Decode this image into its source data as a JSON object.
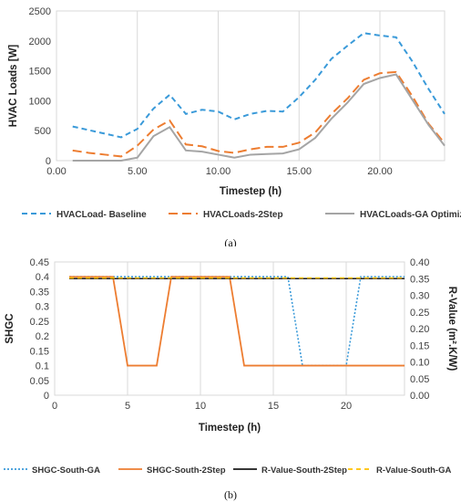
{
  "panel_a": {
    "label": "(a)",
    "chart_data": {
      "type": "line",
      "xlabel": "Timestep (h)",
      "ylabel": "HVAC Loads [W]",
      "xlim": [
        0,
        24
      ],
      "ylim": [
        0,
        2500
      ],
      "xticks": [
        0,
        5,
        10,
        15,
        20
      ],
      "xtick_labels": [
        "0.00",
        "5.00",
        "10.00",
        "15.00",
        "20.00"
      ],
      "yticks": [
        0,
        500,
        1000,
        1500,
        2000,
        2500
      ],
      "ytick_labels": [
        "0",
        "500",
        "1000",
        "1500",
        "2000",
        "2500"
      ],
      "grid": "vertical",
      "legend_position": "bottom",
      "x": [
        1,
        2,
        3,
        4,
        5,
        6,
        7,
        8,
        9,
        10,
        11,
        12,
        13,
        14,
        15,
        16,
        17,
        18,
        19,
        20,
        21,
        22,
        23,
        24
      ],
      "series": [
        {
          "name": "HVACLoad- Baseline",
          "color": "#3a9ad9",
          "dash": "6,4",
          "values": [
            570,
            510,
            450,
            390,
            530,
            870,
            1100,
            780,
            850,
            820,
            690,
            780,
            830,
            820,
            1060,
            1350,
            1700,
            1920,
            2130,
            2090,
            2060,
            1660,
            1200,
            780
          ]
        },
        {
          "name": "HVACLoads-2Step",
          "color": "#ed7d31",
          "dash": "10,5",
          "values": [
            170,
            130,
            100,
            70,
            250,
            520,
            670,
            270,
            240,
            160,
            130,
            190,
            230,
            230,
            300,
            470,
            780,
            1040,
            1350,
            1460,
            1480,
            1080,
            620,
            290
          ]
        },
        {
          "name": "HVACLoads-GA Optimized",
          "color": "#a5a5a5",
          "dash": "",
          "values": [
            0,
            0,
            0,
            0,
            50,
            410,
            560,
            170,
            150,
            100,
            50,
            100,
            110,
            120,
            190,
            380,
            700,
            970,
            1280,
            1380,
            1440,
            1020,
            600,
            250
          ]
        }
      ]
    }
  },
  "panel_b": {
    "label": "(b)",
    "chart_data": {
      "type": "line",
      "xlabel": "Timestep (h)",
      "ylabel_left": "SHGC",
      "ylabel_right": "R-Value (m².K/W)",
      "xlim": [
        0,
        24
      ],
      "ylim_left": [
        0,
        0.45
      ],
      "ylim_right": [
        0,
        0.4
      ],
      "xticks": [
        0,
        5,
        10,
        15,
        20
      ],
      "xtick_labels": [
        "0",
        "5",
        "10",
        "15",
        "20"
      ],
      "yticks_left": [
        0,
        0.05,
        0.1,
        0.15,
        0.2,
        0.25,
        0.3,
        0.35,
        0.4,
        0.45
      ],
      "ytick_labels_left": [
        "0",
        "0.05",
        "0.1",
        "0.15",
        "0.2",
        "0.25",
        "0.3",
        "0.35",
        "0.4",
        "0.45"
      ],
      "yticks_right": [
        0,
        0.05,
        0.1,
        0.15,
        0.2,
        0.25,
        0.3,
        0.35,
        0.4
      ],
      "ytick_labels_right": [
        "0.00",
        "0.05",
        "0.10",
        "0.15",
        "0.20",
        "0.25",
        "0.30",
        "0.35",
        "0.40"
      ],
      "grid": "vertical",
      "legend_position": "bottom",
      "series": [
        {
          "name": "SHGC-South-GA",
          "axis": "left",
          "color": "#3a9ad9",
          "dash": "2,2",
          "x": [
            1,
            16,
            17,
            20,
            21,
            24
          ],
          "values": [
            0.4,
            0.4,
            0.1,
            0.1,
            0.4,
            0.4
          ]
        },
        {
          "name": "SHGC-South-2Step",
          "axis": "left",
          "color": "#ed7d31",
          "dash": "",
          "x": [
            1,
            4,
            5,
            7,
            8,
            12,
            13,
            24
          ],
          "values": [
            0.4,
            0.4,
            0.1,
            0.1,
            0.4,
            0.4,
            0.1,
            0.1
          ]
        },
        {
          "name": "R-Value-South-2Step",
          "axis": "right",
          "color": "#1a1a1a",
          "dash": "",
          "x": [
            1,
            24
          ],
          "values": [
            0.35,
            0.35
          ]
        },
        {
          "name": "R-Value-South-GA",
          "axis": "right",
          "color": "#ffc000",
          "dash": "5,4",
          "x": [
            1,
            24
          ],
          "values": [
            0.352,
            0.352
          ]
        }
      ]
    }
  }
}
